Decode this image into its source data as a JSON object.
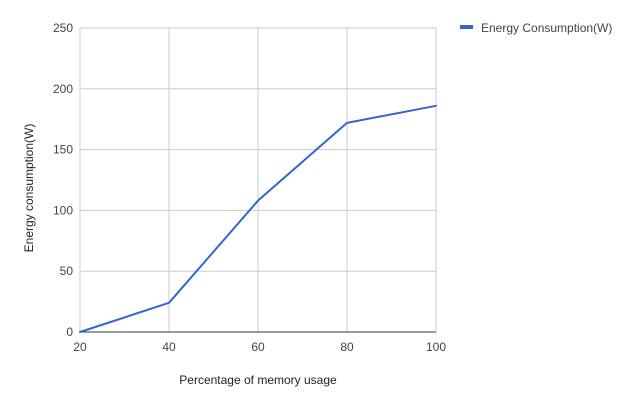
{
  "chart_data": {
    "type": "line",
    "title": "",
    "xlabel": "Percentage of memory usage",
    "ylabel": "Energy consumption(W)",
    "x": [
      20,
      40,
      60,
      80,
      100
    ],
    "xticks": [
      20,
      40,
      60,
      80,
      100
    ],
    "yticks": [
      0,
      50,
      100,
      150,
      200,
      250
    ],
    "xlim": [
      20,
      100
    ],
    "ylim": [
      0,
      250
    ],
    "grid": true,
    "legend_position": "top-right",
    "series": [
      {
        "name": "Energy Consumption(W)",
        "color": "#3366cc",
        "values": [
          0,
          24,
          108,
          172,
          186
        ]
      }
    ]
  }
}
